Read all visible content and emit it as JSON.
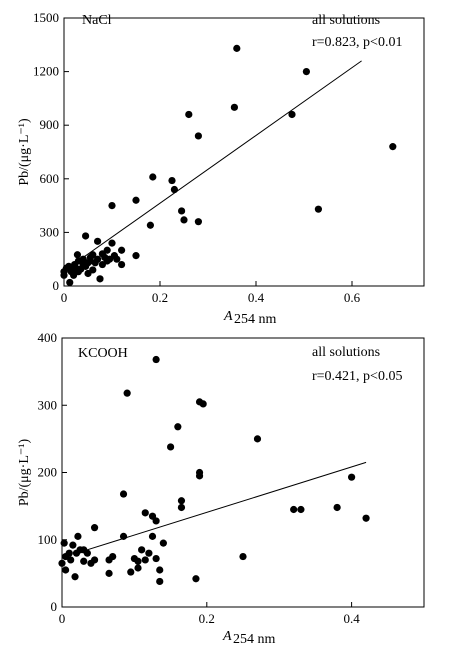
{
  "chart_data": [
    {
      "type": "scatter",
      "panel_label": "NaCl",
      "annotation": {
        "line1": "all solutions",
        "r_text": "r=0.823, p<0.01"
      },
      "xlabel": "A",
      "xlabel_sub": "254 nm",
      "ylabel": "Pb/(μg·L⁻¹)",
      "xlim": [
        0,
        0.75
      ],
      "ylim": [
        0,
        1500
      ],
      "xticks": [
        0,
        0.2,
        0.4,
        0.6
      ],
      "xtick_labels": [
        "0",
        "0.2",
        "0.4",
        "0.6"
      ],
      "yticks": [
        0,
        300,
        600,
        900,
        1200,
        1500
      ],
      "ytick_labels": [
        "0",
        "300",
        "600",
        "900",
        "1200",
        "1500"
      ],
      "fit_line": {
        "x": [
          0.04,
          0.62
        ],
        "y": [
          160,
          1260
        ]
      },
      "points": [
        [
          0.0,
          60
        ],
        [
          0.0,
          80
        ],
        [
          0.005,
          100
        ],
        [
          0.01,
          110
        ],
        [
          0.012,
          20
        ],
        [
          0.015,
          80
        ],
        [
          0.018,
          90
        ],
        [
          0.02,
          60
        ],
        [
          0.022,
          120
        ],
        [
          0.025,
          100
        ],
        [
          0.028,
          175
        ],
        [
          0.03,
          80
        ],
        [
          0.03,
          140
        ],
        [
          0.035,
          95
        ],
        [
          0.04,
          120
        ],
        [
          0.04,
          150
        ],
        [
          0.045,
          110
        ],
        [
          0.045,
          280
        ],
        [
          0.05,
          130
        ],
        [
          0.05,
          70
        ],
        [
          0.055,
          140
        ],
        [
          0.055,
          160
        ],
        [
          0.06,
          90
        ],
        [
          0.06,
          175
        ],
        [
          0.065,
          130
        ],
        [
          0.07,
          250
        ],
        [
          0.07,
          150
        ],
        [
          0.075,
          40
        ],
        [
          0.08,
          180
        ],
        [
          0.08,
          120
        ],
        [
          0.085,
          160
        ],
        [
          0.09,
          200
        ],
        [
          0.09,
          140
        ],
        [
          0.095,
          150
        ],
        [
          0.1,
          240
        ],
        [
          0.1,
          450
        ],
        [
          0.105,
          170
        ],
        [
          0.11,
          150
        ],
        [
          0.12,
          200
        ],
        [
          0.12,
          120
        ],
        [
          0.15,
          480
        ],
        [
          0.15,
          170
        ],
        [
          0.18,
          340
        ],
        [
          0.185,
          610
        ],
        [
          0.225,
          590
        ],
        [
          0.23,
          540
        ],
        [
          0.245,
          420
        ],
        [
          0.25,
          370
        ],
        [
          0.26,
          960
        ],
        [
          0.28,
          360
        ],
        [
          0.28,
          840
        ],
        [
          0.355,
          1000
        ],
        [
          0.36,
          1330
        ],
        [
          0.475,
          960
        ],
        [
          0.505,
          1200
        ],
        [
          0.53,
          430
        ],
        [
          0.685,
          780
        ]
      ]
    },
    {
      "type": "scatter",
      "panel_label": "KCOOH",
      "annotation": {
        "line1": "all solutions",
        "r_text": "r=0.421, p<0.05"
      },
      "xlabel": "A",
      "xlabel_sub": "254 nm",
      "ylabel": "Pb/(μg·L⁻¹)",
      "xlim": [
        0,
        0.5
      ],
      "ylim": [
        0,
        400
      ],
      "xticks": [
        0,
        0.2,
        0.4
      ],
      "xtick_labels": [
        "0",
        "0.2",
        "0.4"
      ],
      "yticks": [
        0,
        100,
        200,
        300,
        400
      ],
      "ytick_labels": [
        "0",
        "100",
        "200",
        "300",
        "400"
      ],
      "fit_line": {
        "x": [
          0.02,
          0.42
        ],
        "y": [
          80,
          215
        ]
      },
      "points": [
        [
          0.0,
          65
        ],
        [
          0.003,
          95
        ],
        [
          0.005,
          55
        ],
        [
          0.005,
          75
        ],
        [
          0.01,
          80
        ],
        [
          0.012,
          70
        ],
        [
          0.015,
          92
        ],
        [
          0.018,
          45
        ],
        [
          0.02,
          80
        ],
        [
          0.022,
          105
        ],
        [
          0.025,
          85
        ],
        [
          0.03,
          68
        ],
        [
          0.03,
          85
        ],
        [
          0.035,
          80
        ],
        [
          0.04,
          65
        ],
        [
          0.045,
          70
        ],
        [
          0.045,
          118
        ],
        [
          0.065,
          50
        ],
        [
          0.065,
          70
        ],
        [
          0.07,
          75
        ],
        [
          0.085,
          105
        ],
        [
          0.085,
          168
        ],
        [
          0.09,
          318
        ],
        [
          0.095,
          52
        ],
        [
          0.1,
          72
        ],
        [
          0.105,
          68
        ],
        [
          0.105,
          58
        ],
        [
          0.11,
          85
        ],
        [
          0.115,
          70
        ],
        [
          0.115,
          140
        ],
        [
          0.12,
          80
        ],
        [
          0.125,
          105
        ],
        [
          0.125,
          135
        ],
        [
          0.13,
          128
        ],
        [
          0.13,
          72
        ],
        [
          0.13,
          368
        ],
        [
          0.135,
          38
        ],
        [
          0.135,
          55
        ],
        [
          0.14,
          95
        ],
        [
          0.15,
          238
        ],
        [
          0.16,
          268
        ],
        [
          0.165,
          148
        ],
        [
          0.165,
          158
        ],
        [
          0.185,
          42
        ],
        [
          0.19,
          195
        ],
        [
          0.19,
          200
        ],
        [
          0.19,
          305
        ],
        [
          0.195,
          302
        ],
        [
          0.25,
          75
        ],
        [
          0.27,
          250
        ],
        [
          0.32,
          145
        ],
        [
          0.33,
          145
        ],
        [
          0.38,
          148
        ],
        [
          0.4,
          193
        ],
        [
          0.42,
          132
        ]
      ]
    }
  ]
}
